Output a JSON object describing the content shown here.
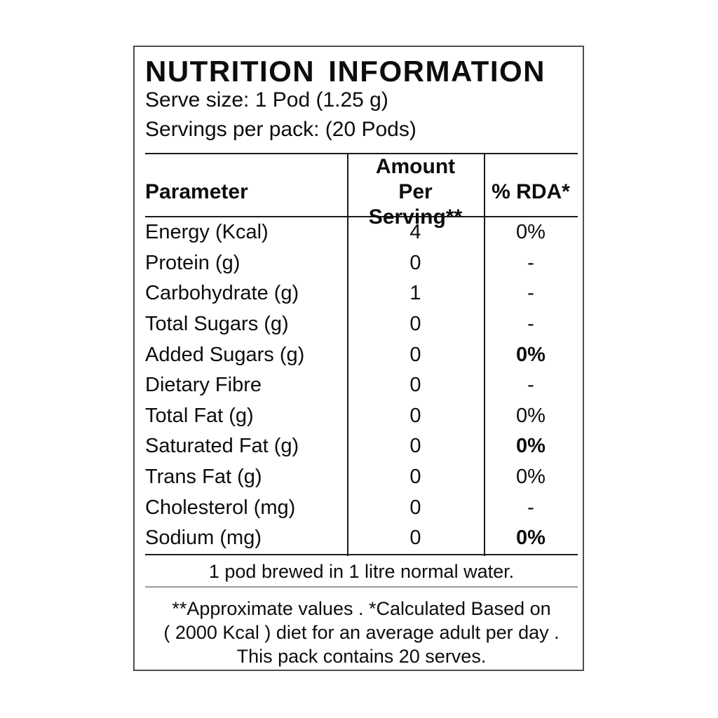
{
  "header": {
    "title": "NUTRITION INFORMATION",
    "serve_size": "Serve size: 1 Pod (1.25 g)",
    "servings_per_pack": "Servings per pack: (20 Pods)"
  },
  "table": {
    "columns": [
      "Parameter",
      "Amount Per Serving**",
      "% RDA*"
    ],
    "rows": [
      {
        "parameter": "Energy (Kcal)",
        "amount": "4",
        "rda": "0%",
        "rda_bold": false
      },
      {
        "parameter": "Protein (g)",
        "amount": "0",
        "rda": "-",
        "rda_bold": false
      },
      {
        "parameter": "Carbohydrate (g)",
        "amount": "1",
        "rda": "-",
        "rda_bold": false
      },
      {
        "parameter": "Total Sugars (g)",
        "amount": "0",
        "rda": "-",
        "rda_bold": false
      },
      {
        "parameter": "Added Sugars (g)",
        "amount": "0",
        "rda": "0%",
        "rda_bold": true
      },
      {
        "parameter": "Dietary Fibre",
        "amount": "0",
        "rda": "-",
        "rda_bold": false
      },
      {
        "parameter": "Total Fat (g)",
        "amount": "0",
        "rda": "0%",
        "rda_bold": false
      },
      {
        "parameter": "Saturated Fat (g)",
        "amount": "0",
        "rda": "0%",
        "rda_bold": true
      },
      {
        "parameter": "Trans Fat (g)",
        "amount": "0",
        "rda": "0%",
        "rda_bold": false
      },
      {
        "parameter": "Cholesterol (mg)",
        "amount": "0",
        "rda": "-",
        "rda_bold": false
      },
      {
        "parameter": "Sodium (mg)",
        "amount": "0",
        "rda": "0%",
        "rda_bold": true
      }
    ],
    "note": "1 pod brewed in 1 litre normal water."
  },
  "footer": {
    "lines": [
      "**Approximate values . *Calculated Based on",
      "( 2000 Kcal ) diet for an average adult per day .",
      "This pack contains 20 serves."
    ]
  },
  "colors": {
    "text": "#0d0d0d",
    "rule_black": "#1a1a1a",
    "rule_gray": "#9a9a9a",
    "outer_border": "#4f4f4f",
    "background": "#ffffff"
  }
}
